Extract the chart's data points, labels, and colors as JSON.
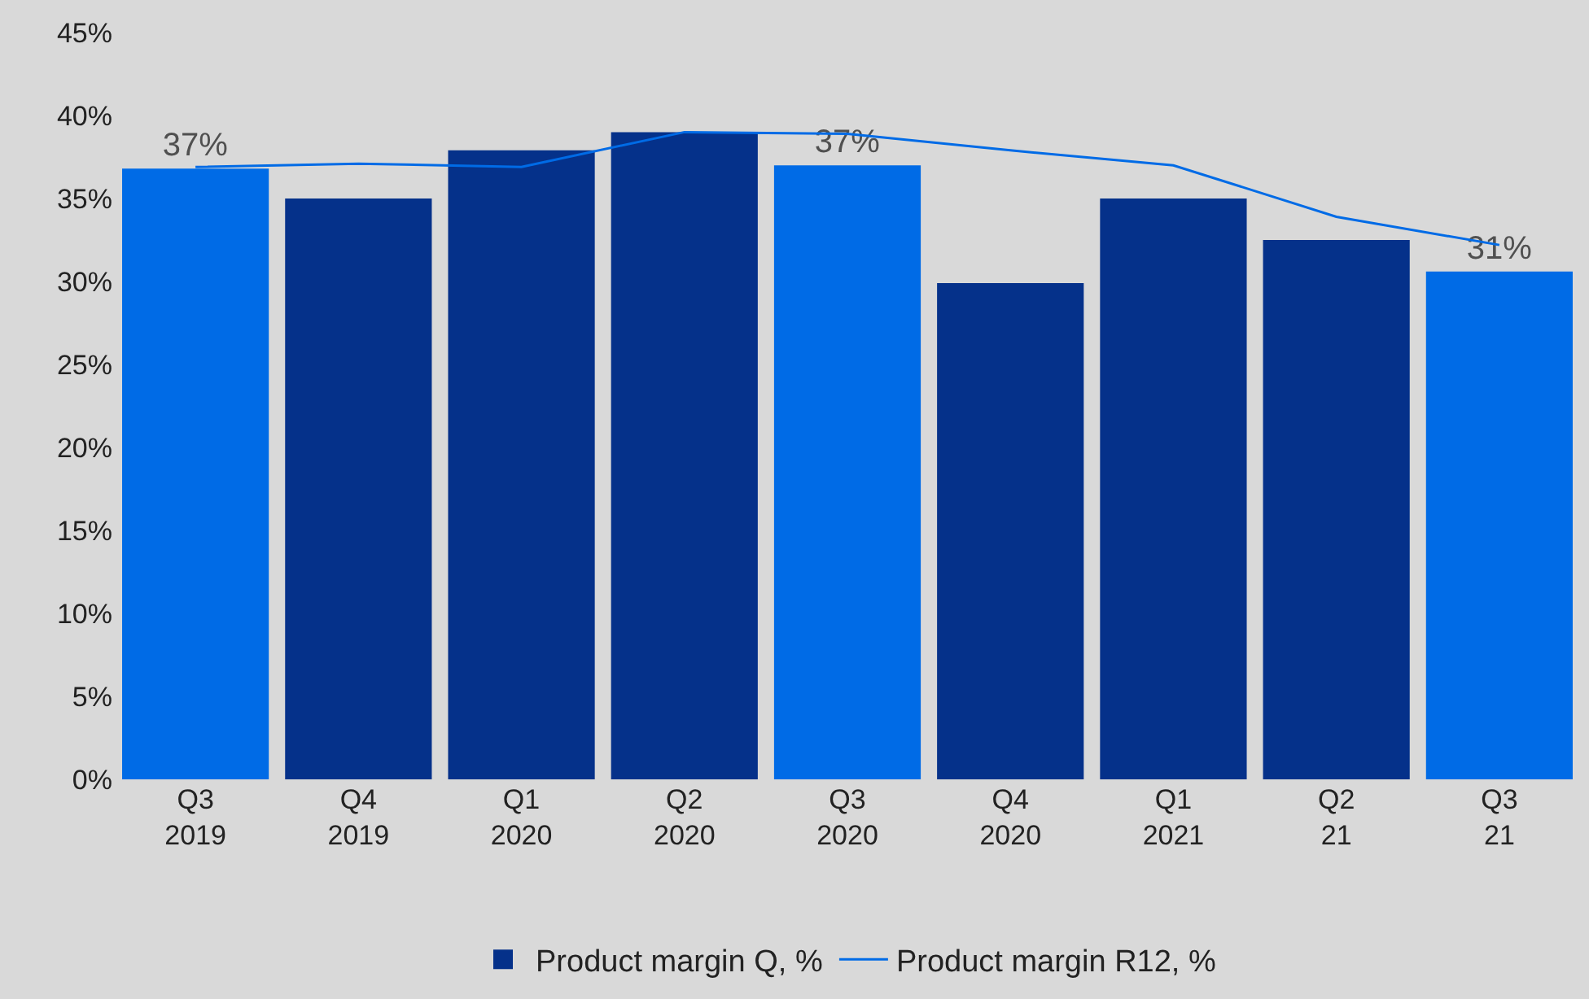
{
  "chart_data": {
    "type": "bar",
    "categories": [
      "Q3\n2019",
      "Q4\n2019",
      "Q1\n2020",
      "Q2\n2020",
      "Q3\n2020",
      "Q4\n2020",
      "Q1\n2021",
      "Q2\n21",
      "Q3\n21"
    ],
    "series": [
      {
        "name": "Product margin Q, %",
        "color": "#05318a",
        "colors": [
          "#006be6",
          "#05318a",
          "#05318a",
          "#05318a",
          "#006be6",
          "#05318a",
          "#05318a",
          "#05318a",
          "#006be6"
        ],
        "values": [
          36.8,
          35.0,
          37.9,
          39.0,
          37.0,
          29.9,
          35.0,
          32.5,
          30.6
        ],
        "value_labels": [
          "37%",
          null,
          null,
          null,
          "37%",
          null,
          null,
          null,
          "31%"
        ]
      },
      {
        "name": "Product margin R12, %",
        "type": "line",
        "color": "#006be6",
        "values": [
          36.9,
          37.1,
          36.9,
          39.0,
          38.9,
          37.9,
          37.0,
          33.9,
          32.2
        ]
      }
    ],
    "ylim": [
      0,
      45
    ],
    "yticks": [
      {
        "value": 0,
        "label": "0%"
      },
      {
        "value": 5,
        "label": "5%"
      },
      {
        "value": 10,
        "label": "10%"
      },
      {
        "value": 15,
        "label": "15%"
      },
      {
        "value": 20,
        "label": "20%"
      },
      {
        "value": 25,
        "label": "25%"
      },
      {
        "value": 30,
        "label": "30%"
      },
      {
        "value": 35,
        "label": "35%"
      },
      {
        "value": 40,
        "label": "40%"
      },
      {
        "value": 45,
        "label": "45%"
      }
    ],
    "grid": false,
    "legend": "bottom",
    "marker": "none",
    "line_style": "solid"
  }
}
